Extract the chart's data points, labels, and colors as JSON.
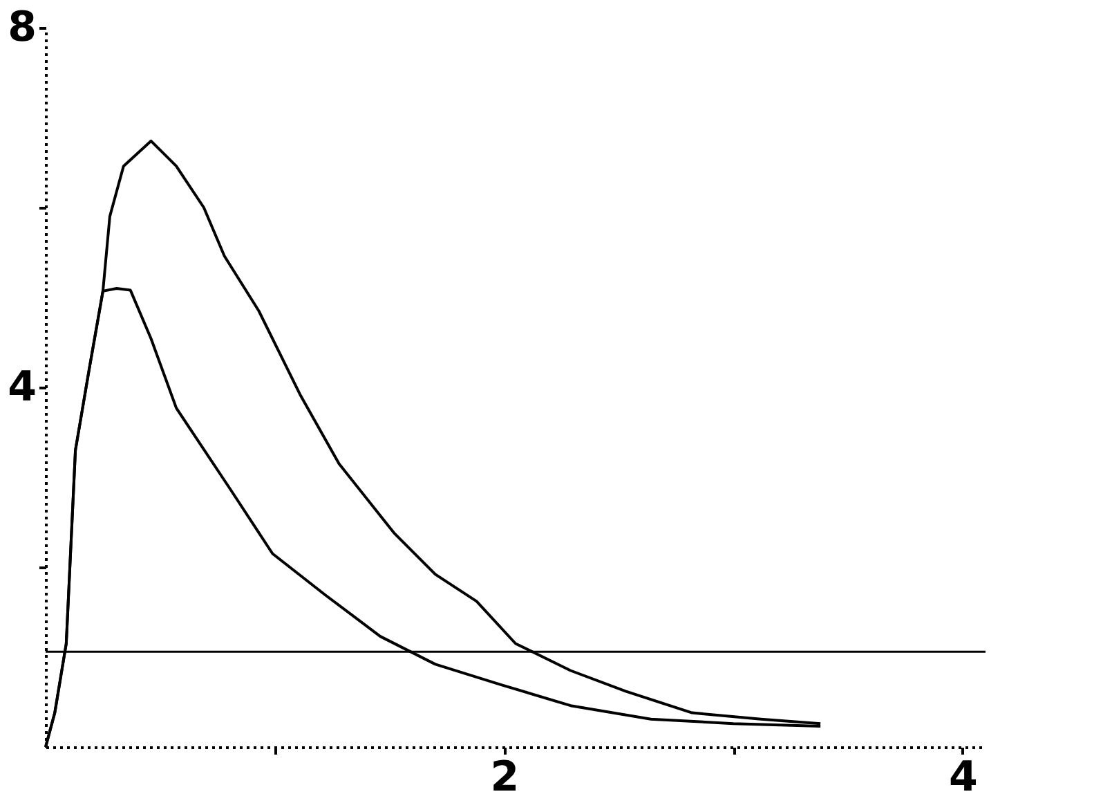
{
  "chart_data": {
    "type": "line",
    "xlim": [
      0,
      4.1
    ],
    "ylim": [
      0,
      8
    ],
    "xticks": [
      {
        "value": 1,
        "label": null
      },
      2,
      {
        "value": 3,
        "label": null
      },
      4
    ],
    "yticks": [
      {
        "value": 2,
        "label": null
      },
      4,
      {
        "value": 6,
        "label": null
      },
      8
    ],
    "grid": false,
    "marker": "none",
    "line_style": "solid",
    "series": [
      {
        "color": "#000000",
        "x": [
          0,
          0.04,
          0.09,
          0.13,
          0.19,
          0.25,
          0.28,
          0.34,
          0.46,
          0.57,
          0.69,
          0.78,
          0.93,
          1.11,
          1.28,
          1.52,
          1.7,
          1.88,
          2.05,
          2.29,
          2.53,
          2.82,
          3.12,
          3.38
        ],
        "values": [
          0,
          0.38,
          1.15,
          3.3,
          4.2,
          5.07,
          5.9,
          6.46,
          6.74,
          6.46,
          6.0,
          5.46,
          4.85,
          3.92,
          3.15,
          2.38,
          1.92,
          1.62,
          1.15,
          0.85,
          0.62,
          0.38,
          0.31,
          0.26
        ]
      },
      {
        "color": "#000000",
        "x": [
          0,
          0.04,
          0.09,
          0.13,
          0.19,
          0.25,
          0.31,
          0.37,
          0.46,
          0.57,
          0.81,
          0.99,
          1.22,
          1.46,
          1.7,
          1.99,
          2.29,
          2.64,
          3.0,
          3.38
        ],
        "values": [
          0,
          0.38,
          1.15,
          3.3,
          4.2,
          5.07,
          5.1,
          5.08,
          4.54,
          3.77,
          2.85,
          2.15,
          1.69,
          1.23,
          0.92,
          0.69,
          0.46,
          0.31,
          0.26,
          0.23
        ]
      }
    ],
    "ref_lines": [
      {
        "axis": "y",
        "value": 1.06,
        "color": "#000000",
        "line_style": "solid"
      }
    ]
  }
}
